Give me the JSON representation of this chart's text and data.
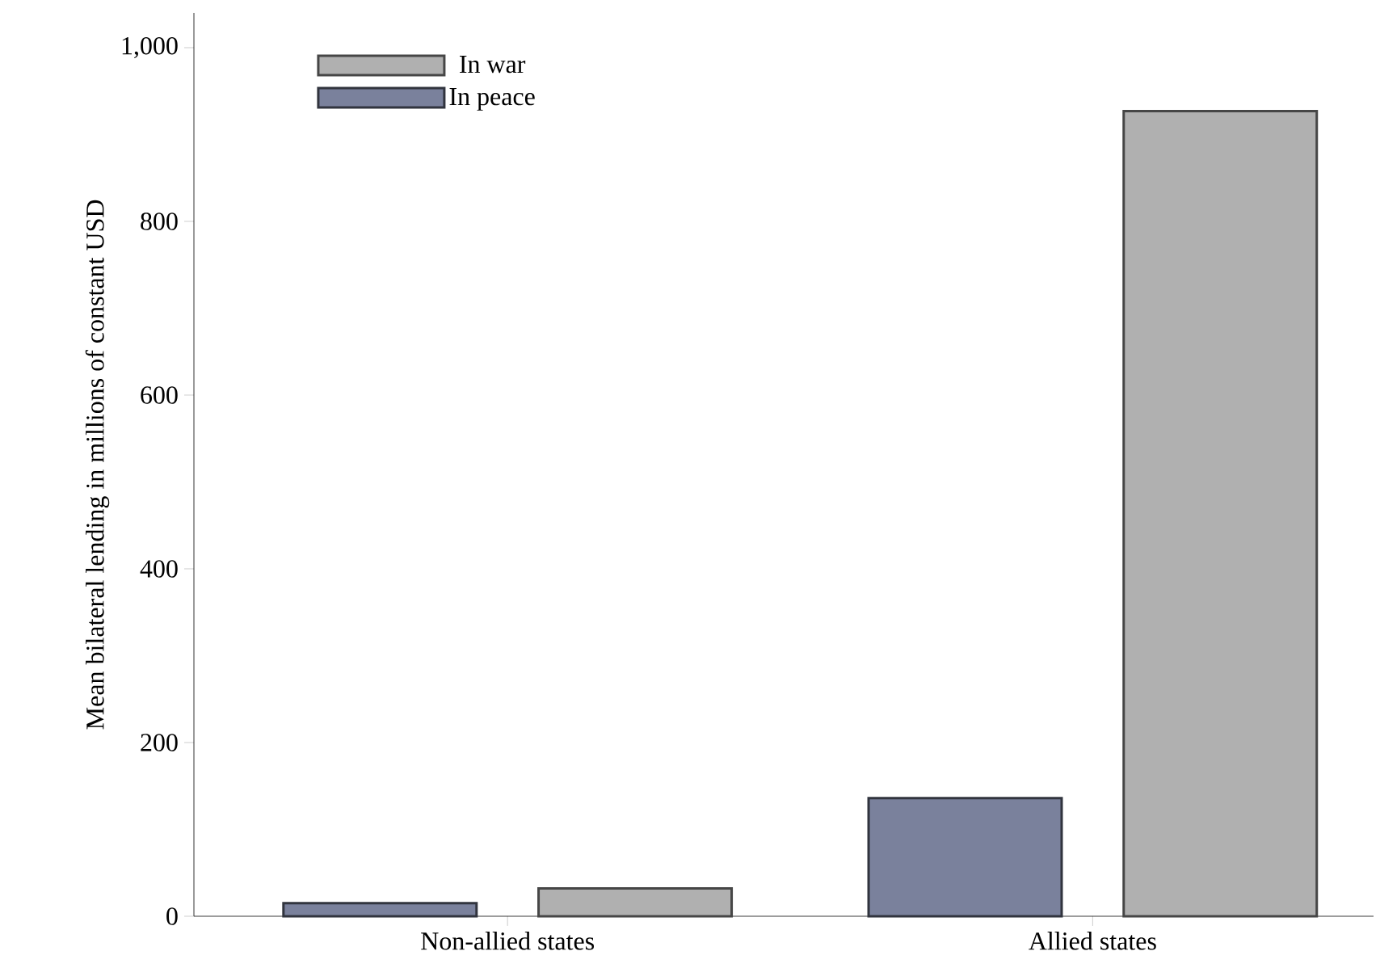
{
  "chart_data": {
    "type": "bar",
    "ylabel": "Mean bilateral lending in millions of constant USD",
    "categories": [
      "Non-allied states",
      "Allied states"
    ],
    "series": [
      {
        "name": "In peace",
        "color": "#7a819c",
        "values": [
          15,
          136
        ]
      },
      {
        "name": "In war",
        "color": "#b0b0b0",
        "values": [
          32,
          927
        ]
      }
    ],
    "ylim": [
      0,
      1040
    ],
    "yticks": [
      0,
      200,
      400,
      600,
      800,
      {
        "value": 1000,
        "label": "1,000"
      }
    ],
    "legend": "top left",
    "grid": false
  }
}
